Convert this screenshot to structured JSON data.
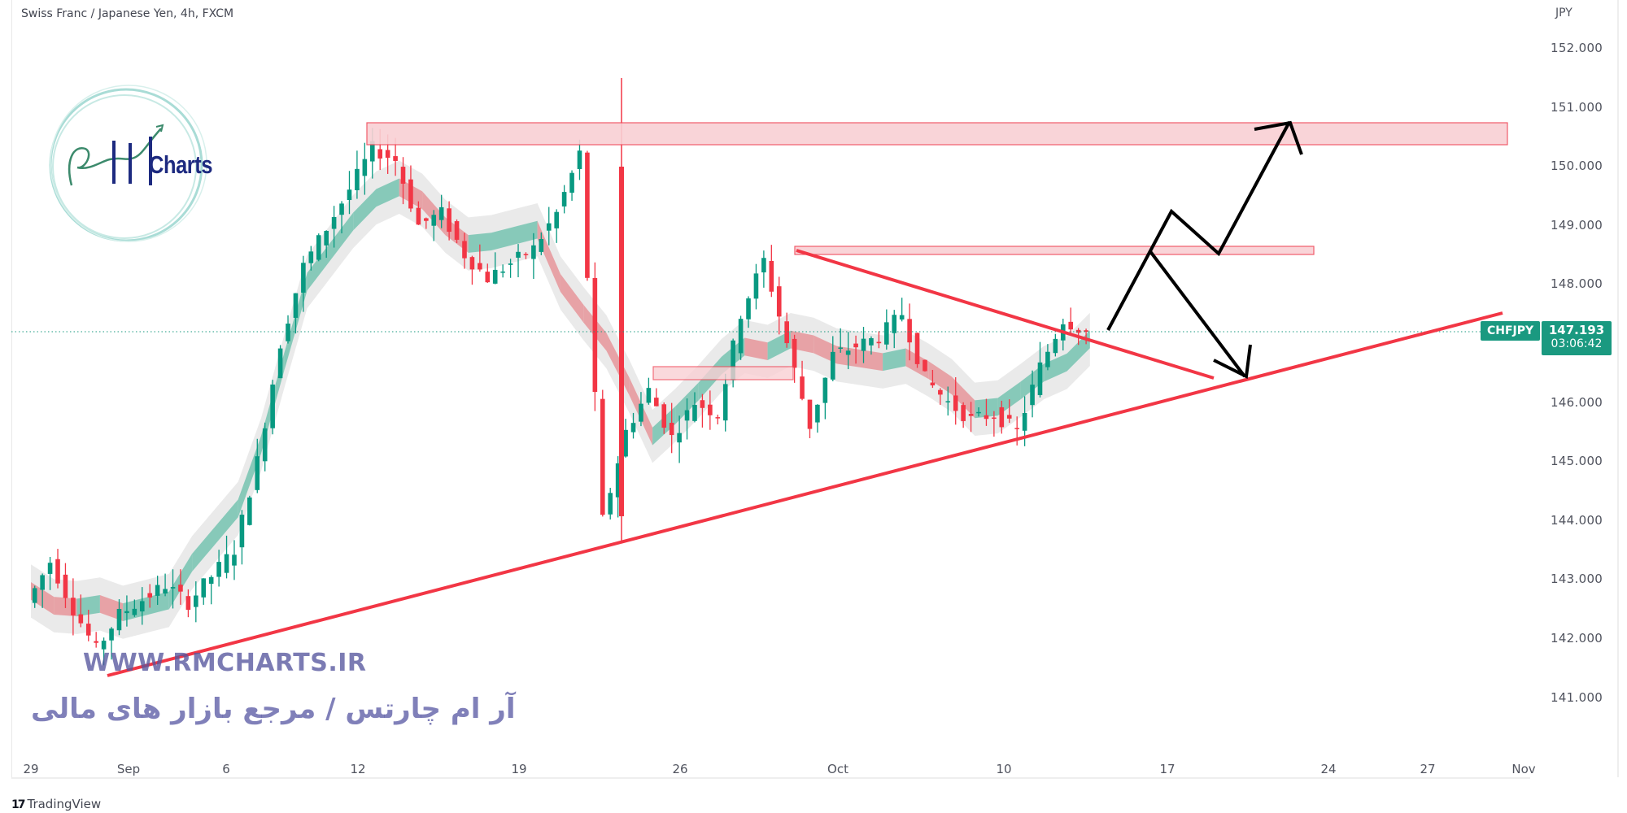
{
  "header": {
    "title": "Swiss Franc / Japanese Yen, 4h, FXCM"
  },
  "price_axis": {
    "unit": "JPY",
    "ticks": [
      "152.000",
      "151.000",
      "150.000",
      "149.000",
      "148.000",
      "146.000",
      "145.000",
      "144.000",
      "143.000",
      "142.000",
      "141.000"
    ]
  },
  "time_axis": {
    "ticks": [
      "29",
      "Sep",
      "6",
      "12",
      "19",
      "26",
      "Oct",
      "10",
      "17",
      "24",
      "27",
      "Nov"
    ]
  },
  "last_price": {
    "symbol": "CHFJPY",
    "price": "147.193",
    "countdown": "03:06:42"
  },
  "branding": {
    "logo_text": "Charts",
    "watermark_url": "WWW.RMCHARTS.IR",
    "watermark_fa": "آر ام چارتس / مرجع بازار های مالی",
    "footer": "TradingView",
    "footer_logo": "17"
  },
  "colors": {
    "up": "#089981",
    "down": "#f23645",
    "zone_fill": "#f9d0d4",
    "zone_stroke": "#f04a5a",
    "trendline": "#f23645",
    "arrow": "#000000",
    "badge": "#1a9980"
  },
  "chart_data": {
    "type": "candlestick",
    "title": "Swiss Franc / Japanese Yen, 4h, FXCM",
    "symbol": "CHFJPY",
    "xlabel": "",
    "ylabel": "JPY",
    "ylim": [
      140.5,
      152.5
    ],
    "y_ticks": [
      141,
      142,
      143,
      144,
      145,
      146,
      147,
      148,
      149,
      150,
      151,
      152
    ],
    "x_ticks": [
      "29",
      "Sep",
      "6",
      "12",
      "19",
      "26",
      "Oct",
      "10",
      "17",
      "24",
      "27",
      "Nov"
    ],
    "last_price": 147.193,
    "price_path": [
      [
        "Aug 29",
        142.6
      ],
      [
        "Aug 30",
        143.3
      ],
      [
        "Aug 31",
        142.5
      ],
      [
        "Sep 1",
        141.8
      ],
      [
        "Sep 2",
        142.4
      ],
      [
        "Sep 4",
        142.9
      ],
      [
        "Sep 5",
        142.6
      ],
      [
        "Sep 7",
        143.5
      ],
      [
        "Sep 8",
        145.0
      ],
      [
        "Sep 9",
        147.0
      ],
      [
        "Sep 10",
        148.3
      ],
      [
        "Sep 12",
        149.6
      ],
      [
        "Sep 13",
        150.3
      ],
      [
        "Sep 14",
        150.1
      ],
      [
        "Sep 15",
        149.0
      ],
      [
        "Sep 16",
        149.2
      ],
      [
        "Sep 17",
        148.5
      ],
      [
        "Sep 18",
        148.1
      ],
      [
        "Sep 20",
        148.6
      ],
      [
        "Sep 21",
        149.2
      ],
      [
        "Sep 22",
        150.2
      ],
      [
        "Sep 23",
        144.0
      ],
      [
        "Sep 24",
        145.5
      ],
      [
        "Sep 25",
        146.2
      ],
      [
        "Sep 26",
        145.4
      ],
      [
        "Sep 27",
        146.0
      ],
      [
        "Sep 28",
        145.8
      ],
      [
        "Sep 29",
        147.5
      ],
      [
        "Sep 30",
        148.4
      ],
      [
        "Oct 1",
        147.0
      ],
      [
        "Oct 2",
        145.6
      ],
      [
        "Oct 3",
        146.8
      ],
      [
        "Oct 5",
        147.1
      ],
      [
        "Oct 6",
        147.5
      ],
      [
        "Oct 7",
        146.4
      ],
      [
        "Oct 8",
        146.0
      ],
      [
        "Oct 9",
        145.7
      ],
      [
        "Oct 10",
        145.8
      ],
      [
        "Oct 11",
        145.5
      ],
      [
        "Oct 12",
        146.6
      ],
      [
        "Oct 13",
        147.4
      ],
      [
        "Oct 14",
        147.19
      ]
    ],
    "annotations": {
      "resistance_zones": [
        {
          "from": "Sep 12",
          "to": "Oct 30",
          "low": 150.35,
          "high": 150.75
        },
        {
          "from": "Sep 30",
          "to": "Oct 23",
          "low": 148.45,
          "high": 148.6
        },
        {
          "from": "Sep 24",
          "to": "Sep 30",
          "low": 146.35,
          "high": 146.55
        }
      ],
      "trendlines": [
        {
          "name": "ascending support",
          "from": [
            "Aug 31",
            141.35
          ],
          "to": [
            "Oct 31",
            147.5
          ]
        },
        {
          "name": "descending resistance",
          "from": [
            "Sep 30",
            148.55
          ],
          "to": [
            "Oct 20",
            146.4
          ]
        }
      ],
      "scenario_arrows": [
        {
          "name": "bullish breakout",
          "path": [
            [
              147.2
            ],
            [
              148.6
            ],
            [
              149.2
            ],
            [
              148.5
            ],
            [
              150.7
            ]
          ]
        },
        {
          "name": "pullback to support",
          "path": [
            [
              148.6
            ],
            [
              146.4
            ]
          ]
        }
      ]
    },
    "grid": false,
    "legend": "none"
  }
}
